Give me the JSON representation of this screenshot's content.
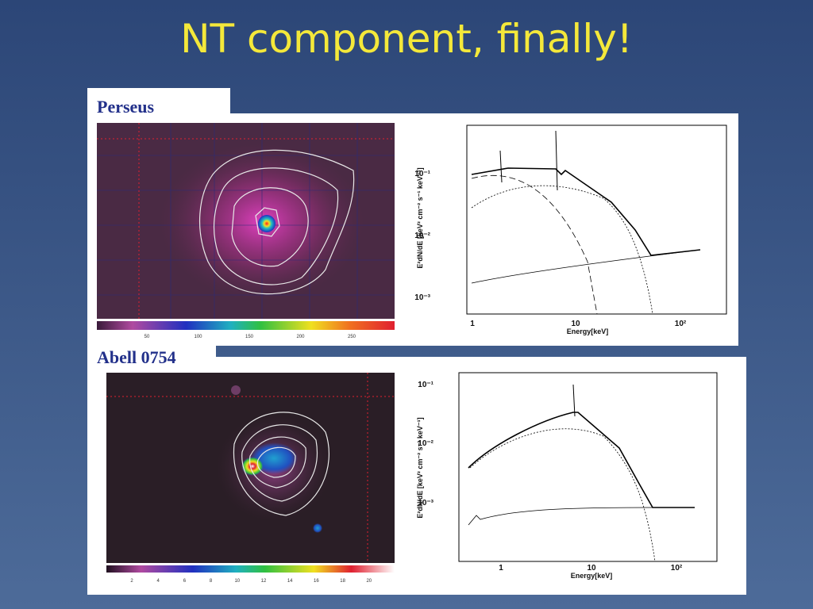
{
  "title": "NT component, finally!",
  "panels": [
    {
      "label": "Perseus",
      "colorbar_ticks": [
        50,
        100,
        150,
        200,
        250
      ],
      "spectrum": {
        "x_label": "Energy[keV]",
        "y_label": "E²dN/dE [keV² cm⁻² s⁻¹ keV⁻¹]",
        "x_ticks": [
          "1",
          "10",
          "10²"
        ],
        "y_ticks": [
          "10⁻¹",
          "10⁻²",
          "10⁻³"
        ]
      }
    },
    {
      "label": "Abell 0754",
      "colorbar_ticks": [
        2,
        4,
        6,
        8,
        10,
        12,
        14,
        16,
        18,
        20
      ],
      "spectrum": {
        "x_label": "Energy[keV]",
        "y_label": "E²dN/dE [keV² cm⁻² s⁻¹ keV⁻¹]",
        "x_ticks": [
          "1",
          "10",
          "10²"
        ],
        "y_ticks": [
          "10⁻¹",
          "10⁻²",
          "10⁻³"
        ]
      }
    }
  ]
}
